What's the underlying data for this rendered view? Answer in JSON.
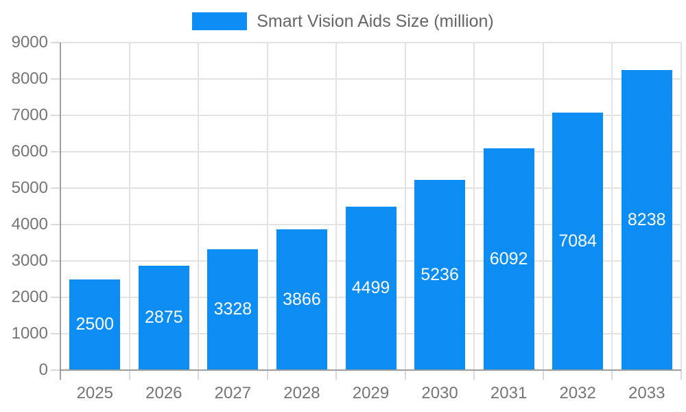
{
  "chart_data": {
    "type": "bar",
    "title": "Smart Vision Aids Size (million)",
    "legend": "Smart Vision Aids Size (million)",
    "legend_position": "top-center",
    "categories": [
      "2025",
      "2026",
      "2027",
      "2028",
      "2029",
      "2030",
      "2031",
      "2032",
      "2033"
    ],
    "series": [
      {
        "name": "Smart Vision Aids Size (million)",
        "values": [
          2500,
          2875,
          3328,
          3866,
          4499,
          5236,
          6092,
          7084,
          8238
        ]
      }
    ],
    "value_labels_shown": true,
    "value_label_position": "inside-center",
    "xlabel": "",
    "ylabel": "",
    "ylim": [
      0,
      9000
    ],
    "ytick_step": 1000,
    "grid": true,
    "colors": {
      "bar": "#0b8df3",
      "value_label": "#ffffff",
      "grid": "#e3e3e3",
      "tick": "#d9d9d9",
      "axis_line": "#9e9e9e",
      "axis_text": "#757575",
      "legend_text": "#666666",
      "background": "#ffffff"
    }
  }
}
